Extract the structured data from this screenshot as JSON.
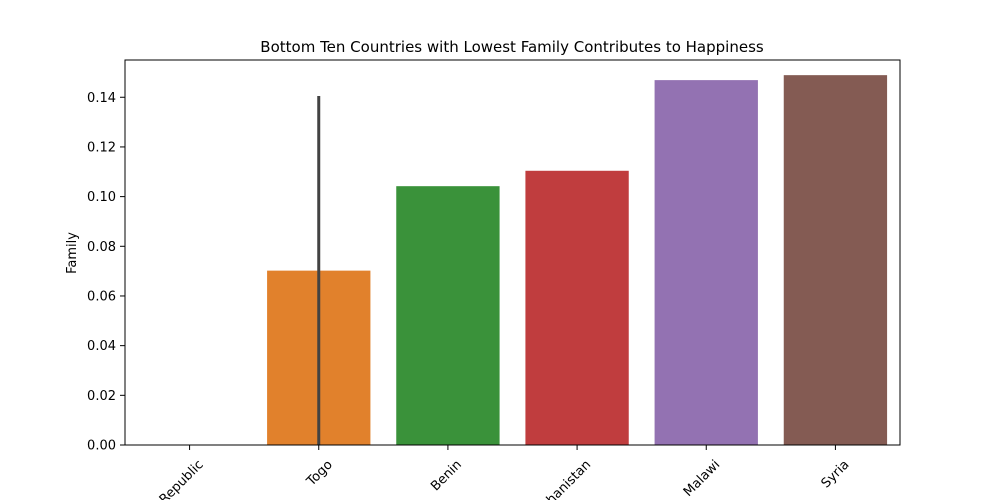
{
  "chart_data": {
    "type": "bar",
    "title": "Bottom Ten Countries with Lowest Family Contributes to Happiness",
    "xlabel": "",
    "ylabel": "Family",
    "categories": [
      "Central African Republic",
      "Togo",
      "Benin",
      "Afghanistan",
      "Malawi",
      "Syria"
    ],
    "visible_tick_labels": [
      "Republic",
      "Togo",
      "Benin",
      "hanistan",
      "Malawi",
      "Syria"
    ],
    "values": [
      0.0,
      0.0702,
      0.1042,
      0.1104,
      0.1469,
      0.1489
    ],
    "colors": [
      "#1f77b4",
      "#e1812c",
      "#3a923a",
      "#c03d3e",
      "#9372b2",
      "#845b53"
    ],
    "error_bars": [
      null,
      {
        "low": 0.0,
        "high": 0.1405
      },
      null,
      null,
      null,
      null
    ],
    "error_bar_color": "#424242",
    "ylim": [
      0,
      0.155
    ],
    "yticks": [
      0.0,
      0.02,
      0.04,
      0.06,
      0.08,
      0.1,
      0.12,
      0.14
    ],
    "ytick_labels": [
      "0.00",
      "0.02",
      "0.04",
      "0.06",
      "0.08",
      "0.10",
      "0.12",
      "0.14"
    ],
    "grid": false,
    "legend": "none"
  }
}
